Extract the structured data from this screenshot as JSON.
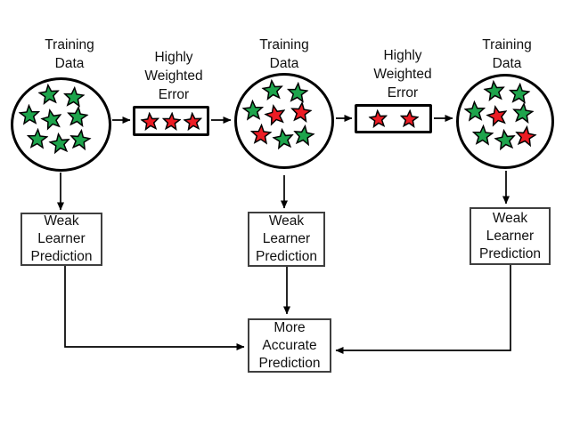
{
  "colors": {
    "star_green": "#1EA44C",
    "star_red": "#EC1C24",
    "star_outline": "#000000",
    "line": "#000000",
    "node_border": "#000000",
    "box_border": "#3F3F3F",
    "text": "#111111"
  },
  "labels": {
    "training_data": "Training\nData",
    "highly_weighted_error": "Highly\nWeighted\nError",
    "weak_learner_prediction": "Weak\nLearner\nPrediction",
    "more_accurate_prediction": "More\nAccurate\nPrediction"
  },
  "circles": [
    {
      "name": "training-data-1",
      "stars": [
        "green",
        "green",
        "green",
        "green",
        "green",
        "green",
        "green",
        "green"
      ]
    },
    {
      "name": "training-data-2",
      "stars": [
        "green",
        "green",
        "green",
        "red",
        "red",
        "red",
        "green",
        "green"
      ]
    },
    {
      "name": "training-data-3",
      "stars": [
        "green",
        "green",
        "green",
        "red",
        "green",
        "green",
        "green",
        "red"
      ]
    }
  ],
  "error_boxes": [
    {
      "name": "highly-weighted-error-1",
      "stars": [
        "red",
        "red",
        "red"
      ]
    },
    {
      "name": "highly-weighted-error-2",
      "stars": [
        "red",
        "red"
      ]
    }
  ]
}
